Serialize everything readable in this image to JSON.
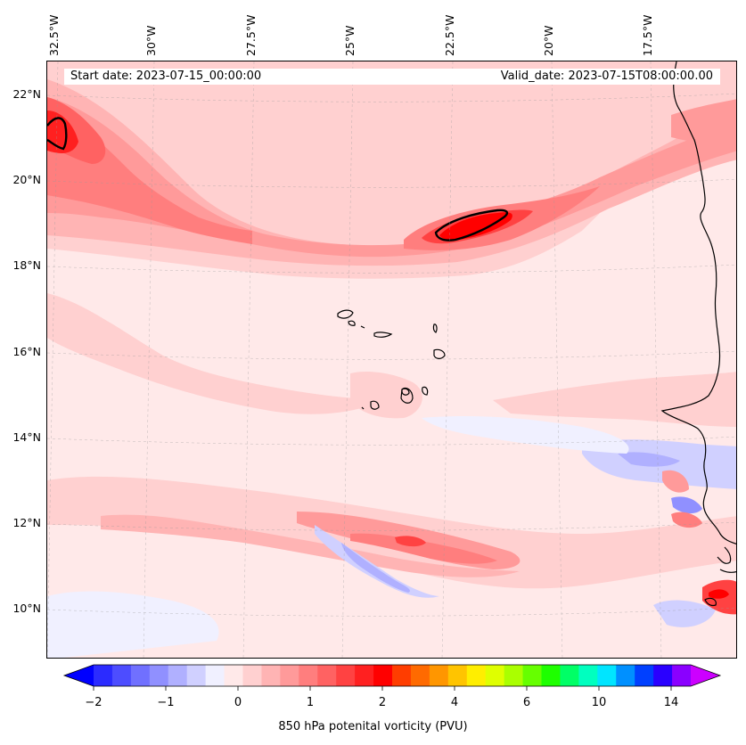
{
  "header": {
    "start_date": "Start date: 2023-07-15_00:00:00",
    "valid_date": "Valid_date: 2023-07-15T08:00:00.00"
  },
  "axes": {
    "lon_labels": [
      "32.5°W",
      "30°W",
      "27.5°W",
      "25°W",
      "22.5°W",
      "20°W",
      "17.5°W"
    ],
    "lat_labels": [
      "22°N",
      "20°N",
      "18°N",
      "16°N",
      "14°N",
      "12°N",
      "10°N"
    ]
  },
  "colorbar": {
    "label": "850 hPa potenital vorticity (PVU)",
    "tick_labels": [
      "−2",
      "−1",
      "0",
      "1",
      "2",
      "4",
      "6",
      "10",
      "14"
    ],
    "colors": [
      "#2b2bff",
      "#4d4dff",
      "#7070ff",
      "#9090ff",
      "#b0b0ff",
      "#d0d0ff",
      "#f0f0ff",
      "#ffe9e9",
      "#ffd0d0",
      "#ffb4b4",
      "#ff9a9a",
      "#ff7e7e",
      "#ff6262",
      "#ff4242",
      "#ff2020",
      "#ff0000",
      "#ff3d00",
      "#ff6a00",
      "#ff9600",
      "#ffc400",
      "#ffee00",
      "#dfff00",
      "#aaff00",
      "#66ff00",
      "#1eff00",
      "#00ff66",
      "#00ffbf",
      "#00e5ff",
      "#0090ff",
      "#0040ff",
      "#2a00ff",
      "#8a00ff"
    ],
    "extend_low_color": "#0000ff",
    "extend_high_color": "#cc00ff"
  }
}
